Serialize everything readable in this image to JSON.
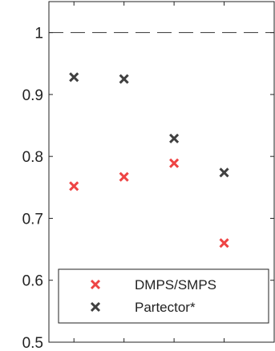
{
  "chart_data": {
    "type": "scatter",
    "title": "",
    "xlabel": "",
    "ylabel": "",
    "ylim": [
      0.5,
      1.05
    ],
    "xlim": [
      0.5,
      5.0
    ],
    "x": [
      1,
      2,
      3,
      4
    ],
    "yticks": [
      0.5,
      0.6,
      0.7,
      0.8,
      0.9,
      1
    ],
    "ytick_labels": [
      "0.5",
      "0.6",
      "0.7",
      "0.8",
      "0.9",
      "1"
    ],
    "grid": false,
    "reference_line": {
      "y": 1,
      "style": "dashed"
    },
    "legend_position": "bottom-left",
    "series": [
      {
        "name": "DMPS/SMPS",
        "color": "#ee4444",
        "marker": "x",
        "values": [
          0.752,
          0.767,
          0.789,
          0.66
        ]
      },
      {
        "name": "Partector*",
        "color": "#404040",
        "marker": "x",
        "values": [
          0.928,
          0.925,
          0.829,
          0.774
        ]
      }
    ]
  }
}
